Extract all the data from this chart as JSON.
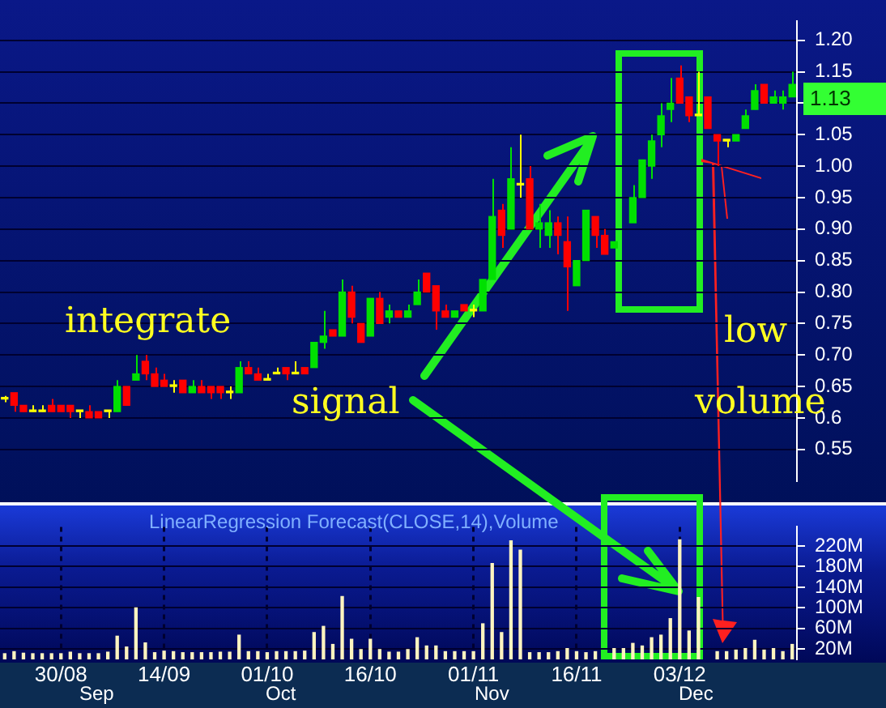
{
  "chart_data": [
    {
      "type": "candlestick",
      "categories": [
        null,
        null,
        null,
        null,
        null,
        null,
        null,
        null,
        null,
        null,
        null,
        null,
        null,
        null,
        null,
        null,
        null,
        null,
        null,
        null,
        null,
        null,
        null,
        null,
        null,
        null,
        null,
        null,
        null,
        null,
        null,
        null,
        null,
        null,
        null,
        null,
        null,
        null,
        null,
        null,
        null,
        null,
        null,
        null,
        null,
        null,
        null,
        null,
        null,
        null,
        null,
        null,
        null,
        null,
        null,
        null,
        null,
        null,
        null,
        null,
        null,
        null,
        null,
        null,
        null,
        null,
        null,
        null,
        null,
        null,
        null,
        null,
        null,
        null,
        null,
        null,
        null,
        null,
        null,
        null,
        null,
        null,
        null,
        null,
        null
      ],
      "ohlc": [
        [
          0.63,
          0.635,
          0.625,
          0.63
        ],
        [
          0.64,
          0.64,
          0.61,
          0.62
        ],
        [
          0.62,
          0.62,
          0.61,
          0.61
        ],
        [
          0.61,
          0.62,
          0.61,
          0.61
        ],
        [
          0.61,
          0.62,
          0.61,
          0.61
        ],
        [
          0.62,
          0.63,
          0.61,
          0.61
        ],
        [
          0.62,
          0.62,
          0.61,
          0.61
        ],
        [
          0.62,
          0.62,
          0.6,
          0.61
        ],
        [
          0.61,
          0.61,
          0.6,
          0.61
        ],
        [
          0.61,
          0.62,
          0.6,
          0.6
        ],
        [
          0.61,
          0.61,
          0.6,
          0.6
        ],
        [
          0.61,
          0.61,
          0.6,
          0.61
        ],
        [
          0.61,
          0.66,
          0.61,
          0.65
        ],
        [
          0.65,
          0.65,
          0.62,
          0.62
        ],
        [
          0.66,
          0.7,
          0.66,
          0.67
        ],
        [
          0.69,
          0.7,
          0.66,
          0.67
        ],
        [
          0.67,
          0.68,
          0.65,
          0.65
        ],
        [
          0.66,
          0.67,
          0.65,
          0.65
        ],
        [
          0.65,
          0.66,
          0.64,
          0.65
        ],
        [
          0.66,
          0.66,
          0.64,
          0.64
        ],
        [
          0.64,
          0.66,
          0.64,
          0.65
        ],
        [
          0.65,
          0.66,
          0.64,
          0.64
        ],
        [
          0.65,
          0.65,
          0.63,
          0.64
        ],
        [
          0.65,
          0.65,
          0.63,
          0.64
        ],
        [
          0.64,
          0.65,
          0.63,
          0.64
        ],
        [
          0.64,
          0.69,
          0.64,
          0.68
        ],
        [
          0.68,
          0.69,
          0.67,
          0.67
        ],
        [
          0.67,
          0.68,
          0.66,
          0.66
        ],
        [
          0.66,
          0.67,
          0.66,
          0.66
        ],
        [
          0.67,
          0.68,
          0.67,
          0.67
        ],
        [
          0.68,
          0.68,
          0.66,
          0.67
        ],
        [
          0.67,
          0.69,
          0.67,
          0.67
        ],
        [
          0.68,
          0.68,
          0.67,
          0.67
        ],
        [
          0.68,
          0.72,
          0.68,
          0.72
        ],
        [
          0.72,
          0.77,
          0.71,
          0.73
        ],
        [
          0.74,
          0.74,
          0.73,
          0.73
        ],
        [
          0.73,
          0.82,
          0.73,
          0.8
        ],
        [
          0.8,
          0.81,
          0.75,
          0.76
        ],
        [
          0.75,
          0.75,
          0.72,
          0.72
        ],
        [
          0.73,
          0.79,
          0.73,
          0.79
        ],
        [
          0.79,
          0.8,
          0.75,
          0.75
        ],
        [
          0.76,
          0.78,
          0.75,
          0.77
        ],
        [
          0.77,
          0.77,
          0.76,
          0.76
        ],
        [
          0.76,
          0.78,
          0.76,
          0.77
        ],
        [
          0.78,
          0.82,
          0.78,
          0.8
        ],
        [
          0.83,
          0.83,
          0.8,
          0.8
        ],
        [
          0.81,
          0.81,
          0.74,
          0.77
        ],
        [
          0.77,
          0.78,
          0.76,
          0.76
        ],
        [
          0.76,
          0.77,
          0.76,
          0.77
        ],
        [
          0.78,
          0.78,
          0.77,
          0.77
        ],
        [
          0.77,
          0.78,
          0.76,
          0.77
        ],
        [
          0.77,
          0.82,
          0.77,
          0.82
        ],
        [
          0.82,
          0.98,
          0.82,
          0.92
        ],
        [
          0.93,
          0.94,
          0.87,
          0.89
        ],
        [
          0.9,
          1.03,
          0.9,
          0.98
        ],
        [
          0.97,
          1.05,
          0.95,
          0.97
        ],
        [
          0.98,
          1.0,
          0.9,
          0.9
        ],
        [
          0.9,
          0.94,
          0.87,
          0.91
        ],
        [
          0.89,
          0.93,
          0.87,
          0.91
        ],
        [
          0.91,
          0.92,
          0.86,
          0.89
        ],
        [
          0.88,
          0.92,
          0.77,
          0.84
        ],
        [
          0.81,
          0.85,
          0.81,
          0.85
        ],
        [
          0.85,
          0.93,
          0.85,
          0.93
        ],
        [
          0.92,
          0.92,
          0.87,
          0.89
        ],
        [
          0.89,
          0.9,
          0.86,
          0.86
        ],
        [
          0.87,
          0.88,
          0.87,
          0.88
        ],
        null,
        [
          0.91,
          0.97,
          0.91,
          0.95
        ],
        [
          0.95,
          1.01,
          0.95,
          1.01
        ],
        [
          1.0,
          1.05,
          0.98,
          1.04
        ],
        [
          1.05,
          1.1,
          1.03,
          1.08
        ],
        [
          1.09,
          1.14,
          1.07,
          1.1
        ],
        [
          1.14,
          1.16,
          1.1,
          1.1
        ],
        [
          1.11,
          1.11,
          1.07,
          1.08
        ],
        [
          1.08,
          1.15,
          1.08,
          1.08
        ],
        [
          1.11,
          1.11,
          1.06,
          1.06
        ],
        [
          1.05,
          1.05,
          1.0,
          1.04
        ],
        [
          1.04,
          1.04,
          1.03,
          1.04
        ],
        [
          1.04,
          1.05,
          1.04,
          1.05
        ],
        [
          1.06,
          1.09,
          1.06,
          1.08
        ],
        [
          1.09,
          1.13,
          1.09,
          1.12
        ],
        [
          1.13,
          1.13,
          1.1,
          1.1
        ],
        [
          1.1,
          1.12,
          1.1,
          1.11
        ],
        [
          1.1,
          1.12,
          1.09,
          1.11
        ],
        [
          1.11,
          1.15,
          1.11,
          1.13
        ]
      ],
      "colors": [
        "#ffff00",
        "#ff0000",
        "#ff0000",
        "#ffff00",
        "#ffff00",
        "#ff0000",
        "#ff0000",
        "#ff0000",
        "#ffff00",
        "#ff0000",
        "#ff0000",
        "#ffff00",
        "#00e000",
        "#ff0000",
        "#00e000",
        "#ff0000",
        "#ff0000",
        "#ff0000",
        "#ffff00",
        "#ff0000",
        "#00e000",
        "#ff0000",
        "#ff0000",
        "#ff0000",
        "#ffff00",
        "#00e000",
        "#ff0000",
        "#ff0000",
        "#ffff00",
        "#ffff00",
        "#ff0000",
        "#ffff00",
        "#ff0000",
        "#00e000",
        "#00e000",
        "#ff0000",
        "#00e000",
        "#ff0000",
        "#ff0000",
        "#00e000",
        "#ff0000",
        "#00e000",
        "#ff0000",
        "#00e000",
        "#00e000",
        "#ff0000",
        "#ff0000",
        "#ff0000",
        "#00e000",
        "#ff0000",
        "#ffff00",
        "#00e000",
        "#00e000",
        "#ff0000",
        "#00e000",
        "#ffff00",
        "#ff0000",
        "#00e000",
        "#00e000",
        "#ff0000",
        "#ff0000",
        "#00e000",
        "#00e000",
        "#ff0000",
        "#ff0000",
        "#00e000",
        null,
        "#00e000",
        "#00e000",
        "#00e000",
        "#00e000",
        "#00e000",
        "#ff0000",
        "#ff0000",
        "#ffff00",
        "#ff0000",
        "#ff0000",
        "#ffff00",
        "#00e000",
        "#00e000",
        "#00e000",
        "#ff0000",
        "#00e000",
        "#00e000",
        "#00e000"
      ],
      "ylim": [
        0.5,
        1.23
      ],
      "yticks": [
        0.55,
        0.6,
        0.65,
        {
          "value": 0.7,
          "label": "0.70"
        },
        0.75,
        {
          "value": 0.8,
          "label": "0.80"
        },
        0.85,
        {
          "value": 0.9,
          "label": "0.90"
        },
        0.95,
        {
          "value": 1.0,
          "label": "1.00"
        },
        1.05,
        {
          "value": 1.1,
          "label": null
        },
        1.15,
        {
          "value": 1.2,
          "label": "1.20"
        }
      ],
      "grid": "y",
      "tick_labels": "y",
      "annotations": [
        "integrate",
        "signal",
        "low",
        "volume",
        "1.13"
      ]
    },
    {
      "type": "bar",
      "title": "LinearRegression Forecast(CLOSE,14),Volume",
      "categories": [
        null,
        null,
        null,
        null,
        null,
        null,
        "30/08",
        null,
        null,
        null,
        null,
        null,
        null,
        null,
        null,
        null,
        null,
        "14/09",
        null,
        null,
        null,
        null,
        null,
        null,
        null,
        null,
        null,
        null,
        "01/10",
        null,
        null,
        null,
        null,
        null,
        null,
        null,
        null,
        null,
        null,
        "16/10",
        null,
        null,
        null,
        null,
        null,
        null,
        null,
        null,
        null,
        null,
        "01/11",
        null,
        null,
        null,
        null,
        null,
        null,
        null,
        null,
        null,
        null,
        "16/11",
        null,
        null,
        null,
        null,
        null,
        null,
        null,
        null,
        null,
        null,
        "03/12",
        null,
        null,
        null,
        null,
        null,
        null,
        null,
        null,
        null,
        null,
        null,
        null
      ],
      "values": [
        11,
        15,
        12,
        11,
        11,
        11,
        11,
        14,
        11,
        11,
        11,
        14,
        45,
        24,
        100,
        32,
        13,
        16,
        15,
        13,
        13,
        13,
        13,
        14,
        14,
        47,
        15,
        15,
        13,
        15,
        15,
        15,
        16,
        52,
        64,
        29,
        122,
        39,
        19,
        39,
        19,
        14,
        14,
        19,
        42,
        26,
        26,
        15,
        15,
        15,
        15,
        69,
        186,
        52,
        230,
        212,
        13,
        13,
        13,
        15,
        21,
        15,
        13,
        15,
        null,
        21,
        21,
        31,
        26,
        42,
        47,
        79,
        232,
        55,
        120,
        null,
        15,
        15,
        18,
        21,
        37,
        18,
        21,
        15,
        29
      ],
      "color": "#fff4c0",
      "ylim": [
        0,
        257
      ],
      "yticks": [
        {
          "value": 20,
          "label": "20M"
        },
        {
          "value": 60,
          "label": "60M"
        },
        {
          "value": 100,
          "label": "100M"
        },
        {
          "value": 140,
          "label": "140M"
        },
        {
          "value": 180,
          "label": "180M"
        },
        {
          "value": 220,
          "label": "220M"
        }
      ],
      "grid": true,
      "annotations": [
        "Sep",
        "Oct",
        "Nov",
        "Dec"
      ]
    }
  ]
}
